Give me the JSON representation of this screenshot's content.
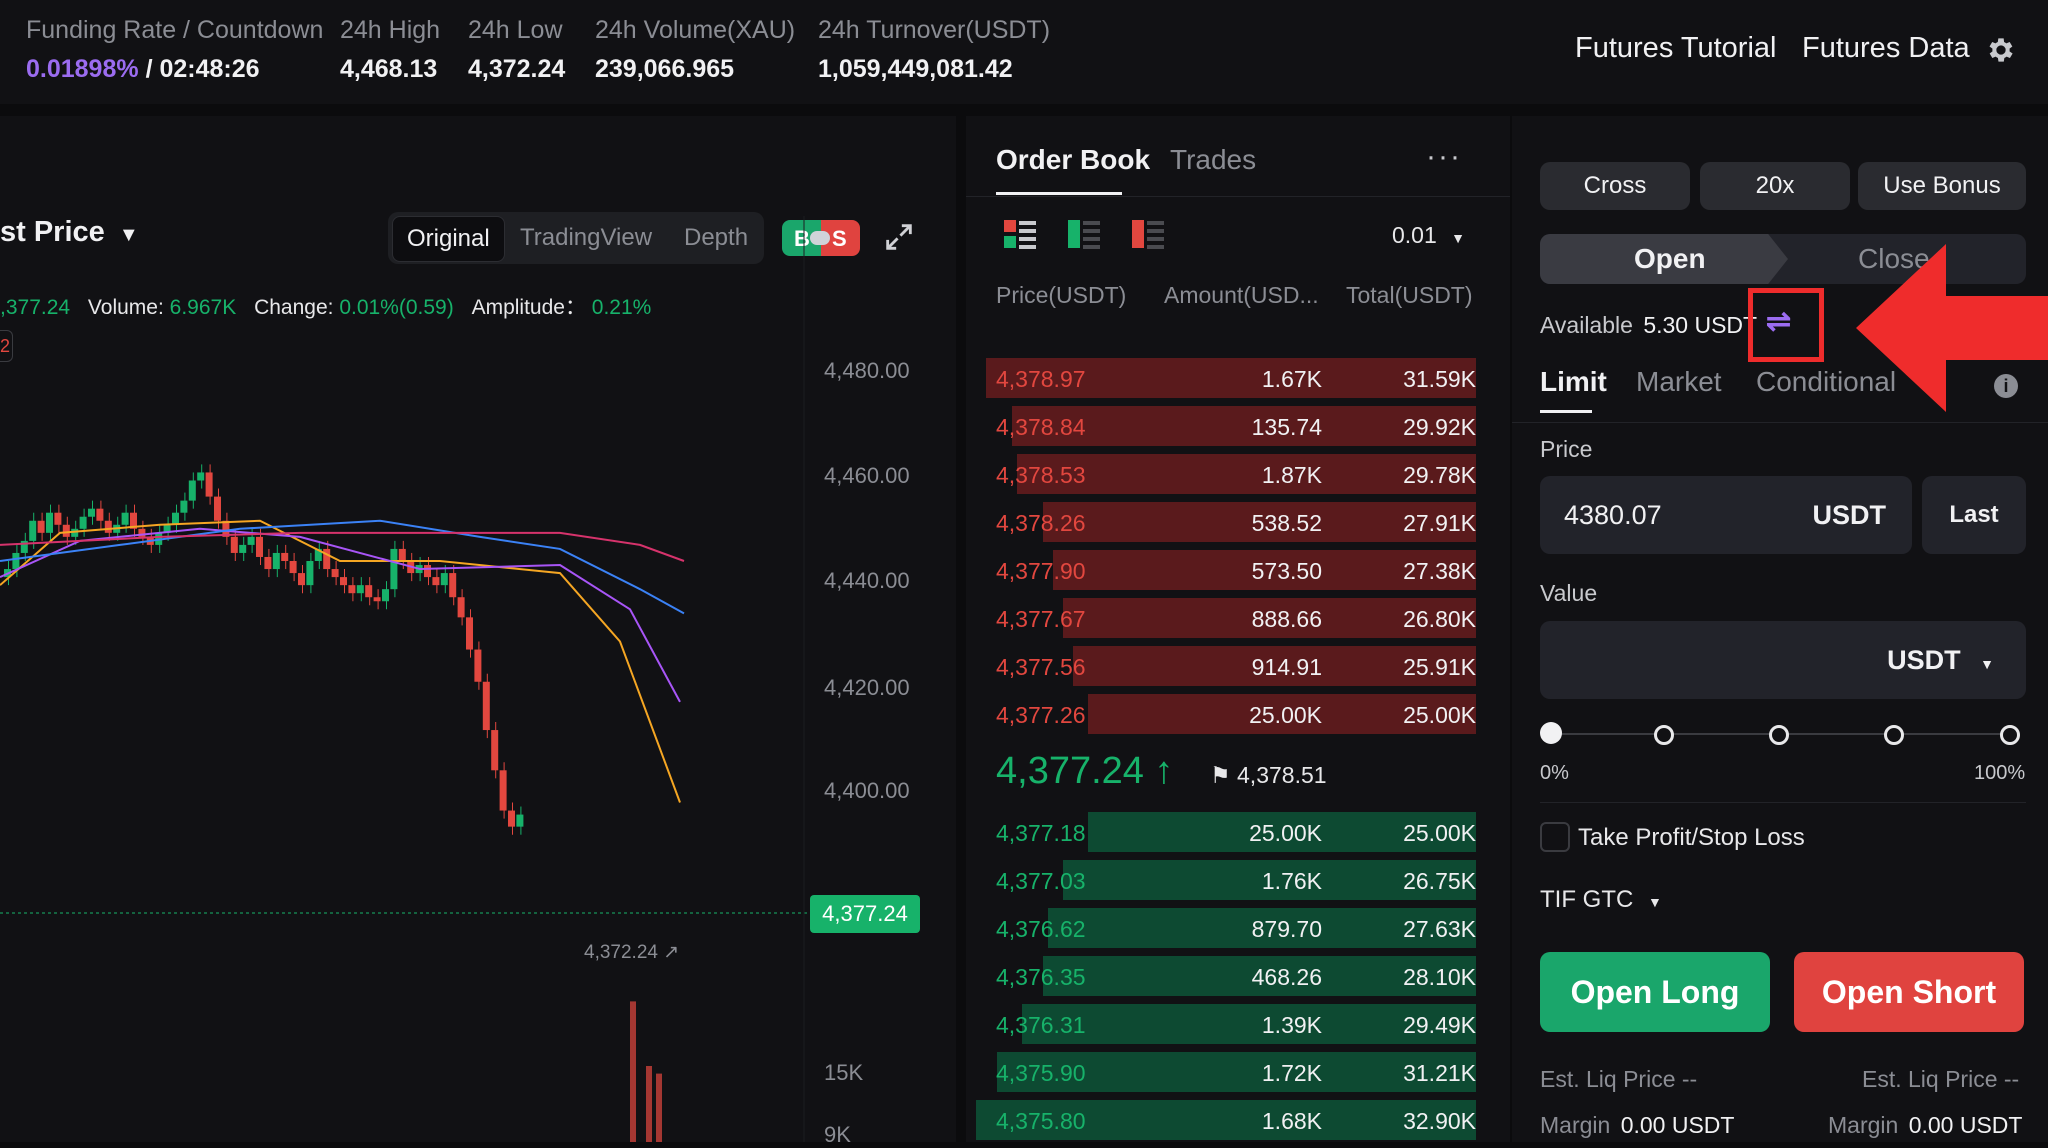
{
  "topbar": {
    "funding_label": "Funding Rate / Countdown",
    "funding_rate": "0.01898%",
    "funding_sep": "/",
    "countdown": "02:48:26",
    "high_label": "24h High",
    "high_value": "4,468.13",
    "low_label": "24h Low",
    "low_value": "4,372.24",
    "volume_label": "24h Volume(XAU)",
    "volume_value": "239,066.965",
    "turnover_label": "24h Turnover(USDT)",
    "turnover_value": "1,059,449,081.42",
    "tutorial_link": "Futures Tutorial",
    "data_link": "Futures Data",
    "settings_icon": "gear-icon"
  },
  "chart": {
    "price_type": "st Price",
    "views": [
      "Original",
      "TradingView",
      "Depth"
    ],
    "active_view": "Original",
    "bs_toggle": [
      "B",
      "S"
    ],
    "info": {
      "last": ",377.24",
      "volume_label": "Volume:",
      "volume": "6.967K",
      "change_label": "Change:",
      "change": "0.01%(0.59)",
      "amplitude_label": "Amplitude：",
      "amplitude": "0.21%"
    },
    "left_marker": "2",
    "y_ticks": [
      "4,480.00",
      "4,460.00",
      "4,440.00",
      "4,420.00",
      "4,400.00"
    ],
    "volume_ticks": [
      "15K",
      "9K"
    ],
    "last_price_tag": "4,377.24",
    "low_marker": "4,372.24",
    "colors": {
      "up": "#17b26a",
      "down": "#e2473f",
      "ma1": "#f5a623",
      "ma2": "#a855f7",
      "ma3": "#3b82f6",
      "ma4": "#d6336c"
    }
  },
  "orderbook": {
    "tab_active": "Order Book",
    "tab_other": "Trades",
    "more_icon": "more-icon",
    "precision": "0.01",
    "columns": [
      "Price(USDT)",
      "Amount(USD...",
      "Total(USDT)"
    ],
    "asks": [
      {
        "price": "4,378.97",
        "amount": "1.67K",
        "total": "31.59K",
        "depth": 0.96
      },
      {
        "price": "4,378.84",
        "amount": "135.74",
        "total": "29.92K",
        "depth": 0.91
      },
      {
        "price": "4,378.53",
        "amount": "1.87K",
        "total": "29.78K",
        "depth": 0.9
      },
      {
        "price": "4,378.26",
        "amount": "538.52",
        "total": "27.91K",
        "depth": 0.85
      },
      {
        "price": "4,377.90",
        "amount": "573.50",
        "total": "27.38K",
        "depth": 0.83
      },
      {
        "price": "4,377.67",
        "amount": "888.66",
        "total": "26.80K",
        "depth": 0.81
      },
      {
        "price": "4,377.56",
        "amount": "914.91",
        "total": "25.91K",
        "depth": 0.79
      },
      {
        "price": "4,377.26",
        "amount": "25.00K",
        "total": "25.00K",
        "depth": 0.76
      }
    ],
    "last_price": "4,377.24",
    "mark_price": "4,378.51",
    "bids": [
      {
        "price": "4,377.18",
        "amount": "25.00K",
        "total": "25.00K",
        "depth": 0.76
      },
      {
        "price": "4,377.03",
        "amount": "1.76K",
        "total": "26.75K",
        "depth": 0.81
      },
      {
        "price": "4,376.62",
        "amount": "879.70",
        "total": "27.63K",
        "depth": 0.84
      },
      {
        "price": "4,376.35",
        "amount": "468.26",
        "total": "28.10K",
        "depth": 0.85
      },
      {
        "price": "4,376.31",
        "amount": "1.39K",
        "total": "29.49K",
        "depth": 0.89
      },
      {
        "price": "4,375.90",
        "amount": "1.72K",
        "total": "31.21K",
        "depth": 0.94
      },
      {
        "price": "4,375.80",
        "amount": "1.68K",
        "total": "32.90K",
        "depth": 0.98
      }
    ]
  },
  "trade": {
    "margin_mode": "Cross",
    "leverage": "20x",
    "bonus": "Use Bonus",
    "open_tab": "Open",
    "close_tab": "Close",
    "available_label": "Available",
    "available_value": "5.30 USDT",
    "order_types": [
      "Limit",
      "Market",
      "Conditional"
    ],
    "price_label": "Price",
    "price_value": "4380.07",
    "price_unit": "USDT",
    "last_button": "Last",
    "value_label": "Value",
    "value_unit": "USDT",
    "slider_min": "0%",
    "slider_max": "100%",
    "slider_value": 0,
    "tpsl_label": "Take Profit/Stop Loss",
    "tif_label": "TIF GTC",
    "open_long": "Open Long",
    "open_short": "Open Short",
    "est_liq_long": "Est. Liq Price --",
    "est_liq_short": "Est. Liq Price --",
    "margin_label": "Margin",
    "margin_long": "0.00 USDT",
    "margin_short": "0.00 USDT"
  }
}
